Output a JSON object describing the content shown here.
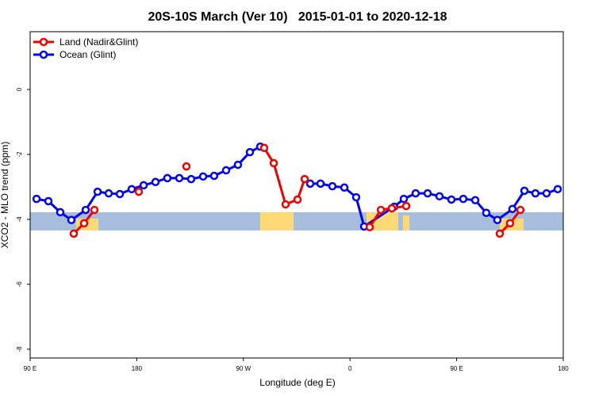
{
  "chart_data": {
    "type": "line",
    "title": "20S-10S March (Ver 10)   2015-01-01 to 2020-12-18",
    "x_label": "Longitude (deg E)",
    "y_label": "XCO2 - MLO trend (ppm)",
    "xlim": [
      90,
      540
    ],
    "xticks": [
      {
        "value": 90,
        "label": "90 E"
      },
      {
        "value": 180,
        "label": "180"
      },
      {
        "value": 270,
        "label": "90 W"
      },
      {
        "value": 360,
        "label": "0"
      },
      {
        "value": 450,
        "label": "90 E"
      },
      {
        "value": 540,
        "label": "180"
      }
    ],
    "ylim": [
      -8.27,
      1.78
    ],
    "yticks": [
      0,
      -2,
      -4,
      -6,
      -8
    ],
    "legend": "top-left",
    "series": [
      {
        "name": "Land (Nadir&Glint)",
        "color": "#ee0000",
        "x": [
          126.8,
          135.5,
          144.2,
          null,
          181.7,
          null,
          221.9,
          null,
          287.5,
          295.6,
          305.6,
          315.7,
          321.7,
          null,
          376.6,
          386.0,
          395.3,
          407.4,
          null,
          486.4,
          495.1,
          503.8
        ],
        "values": [
          -4.44,
          -4.12,
          -3.71,
          null,
          -3.15,
          null,
          -2.37,
          null,
          -1.8,
          -2.27,
          -3.54,
          -3.39,
          -2.76,
          null,
          -4.24,
          -3.71,
          -3.66,
          -3.59,
          null,
          -4.44,
          -4.12,
          -3.71
        ]
      },
      {
        "name": "Ocean (Glint)",
        "color": "#0000ee",
        "x": [
          95.4,
          105.4,
          115.4,
          124.8,
          136.9,
          146.9,
          156.3,
          165.7,
          175.7,
          185.8,
          195.8,
          205.8,
          215.9,
          225.9,
          236.0,
          245.3,
          255.4,
          265.4,
          275.5,
          284.2,
          null,
          326.4,
          335.1,
          345.1,
          355.2,
          365.2,
          371.9,
          397.3,
          405.4,
          415.4,
          425.5,
          435.5,
          445.6,
          455.6,
          465.7,
          475.0,
          484.4,
          497.1,
          507.2,
          516.5,
          525.9,
          535.3
        ],
        "values": [
          -3.37,
          -3.44,
          -3.78,
          -4.02,
          -3.71,
          -3.15,
          -3.2,
          -3.22,
          -3.07,
          -2.95,
          -2.85,
          -2.73,
          -2.73,
          -2.76,
          -2.68,
          -2.66,
          -2.49,
          -2.32,
          -1.93,
          -1.76,
          null,
          -2.9,
          -2.9,
          -2.98,
          -3.02,
          -3.32,
          -4.22,
          -3.61,
          -3.37,
          -3.2,
          -3.2,
          -3.29,
          -3.39,
          -3.37,
          -3.41,
          -3.8,
          -4.02,
          -3.68,
          -3.12,
          -3.2,
          -3.2,
          -3.07
        ]
      }
    ]
  }
}
